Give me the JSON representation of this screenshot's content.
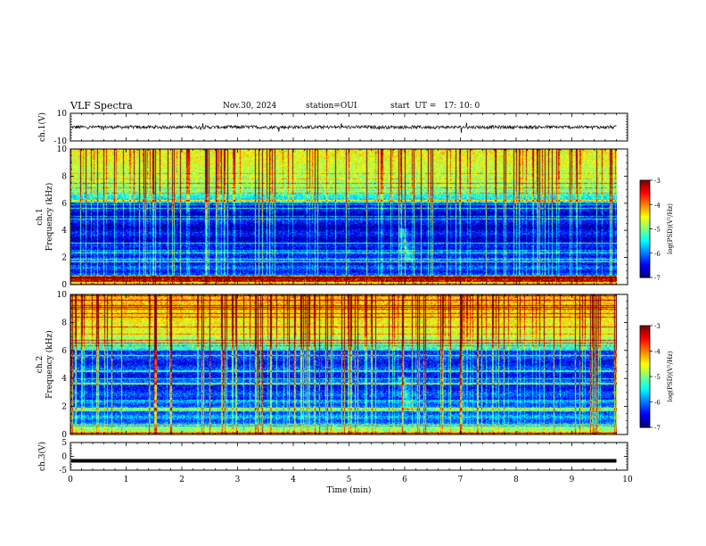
{
  "header": {
    "title": "VLF Spectra",
    "date": "Nov.30, 2024",
    "station": "station=OUI",
    "start": "start  UT =   17: 10: 0"
  },
  "chart_data": [
    {
      "type": "line",
      "name": "ch1-waveform",
      "ylabel": "ch.1(V)",
      "ylim": [
        -10,
        10
      ],
      "yticks": [
        "10",
        "-10"
      ],
      "xlim": [
        0,
        10
      ],
      "line_color": "#000000",
      "baseline_value": 0,
      "data_end_min": 9.8
    },
    {
      "type": "heatmap",
      "name": "ch1-spectrogram",
      "ylabel_line1": "ch.1",
      "ylabel_line2": "Frequency (kHz)",
      "yticks": [
        "0",
        "2",
        "4",
        "6",
        "8",
        "10"
      ],
      "ylim": [
        0,
        10
      ],
      "xlim": [
        0,
        10
      ],
      "data_end_min": 9.8,
      "colorbar": {
        "label": "log(PSD)(V²/Hz)",
        "ticks": [
          "-3",
          "-4",
          "-5",
          "-6",
          "-7"
        ],
        "range": [
          -7,
          -3
        ]
      },
      "features": [
        {
          "label": "whistler-like feature",
          "x_min": 5.95,
          "freq_khz": [
            1.8,
            4.2
          ]
        }
      ]
    },
    {
      "type": "heatmap",
      "name": "ch2-spectrogram",
      "ylabel_line1": "ch.2",
      "ylabel_line2": "Frequency (kHz)",
      "yticks": [
        "0",
        "2",
        "4",
        "6",
        "8",
        "10"
      ],
      "ylim": [
        0,
        10
      ],
      "xlim": [
        0,
        10
      ],
      "data_end_min": 9.8,
      "colorbar": {
        "label": "log(PSD)(V²/Hz)",
        "ticks": [
          "-3",
          "-4",
          "-5",
          "-6",
          "-7"
        ],
        "range": [
          -7,
          -3
        ]
      },
      "features": [
        {
          "label": "whistler-like feature",
          "x_min": 5.95,
          "freq_khz": [
            1.8,
            4.2
          ]
        }
      ]
    },
    {
      "type": "line",
      "name": "ch3-waveform",
      "ylabel": "ch.3(V)",
      "ylim": [
        -5,
        5
      ],
      "yticks": [
        "5",
        "0",
        "-5"
      ],
      "xlim": [
        0,
        10
      ],
      "xticks": [
        "0",
        "1",
        "2",
        "3",
        "4",
        "5",
        "6",
        "7",
        "8",
        "9",
        "10"
      ],
      "xlabel": "Time (min)",
      "line_color": "#000000",
      "level_value": -1.6,
      "data_end_min": 9.8
    }
  ]
}
